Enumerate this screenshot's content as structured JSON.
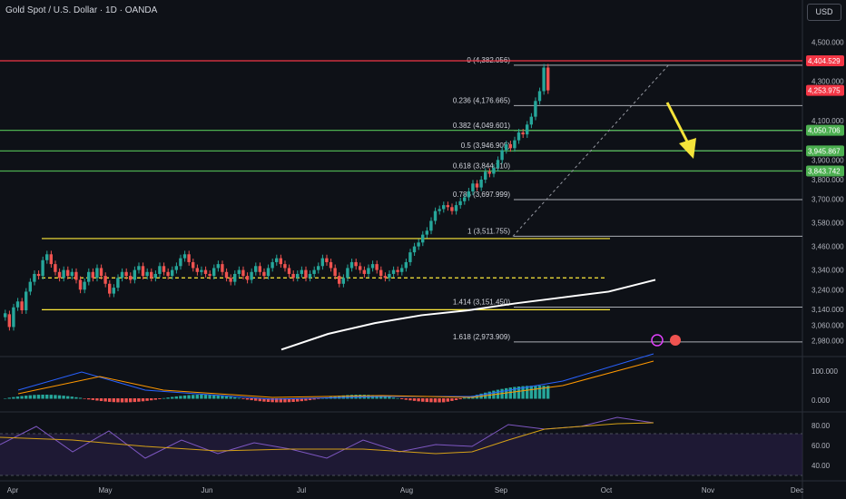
{
  "header": {
    "title": "Gold Spot / U.S. Dollar · 1D · OANDA",
    "currency": "USD"
  },
  "colors": {
    "bg": "#0e1117",
    "up": "#26a69a",
    "down": "#ef5350",
    "grid": "#1e222d",
    "text": "#b2b5be",
    "fib_line": "#d1d4dc",
    "green_line": "#4caf50",
    "red_line": "#f23645",
    "yellow_line": "#ffeb3b",
    "ma": "#ffffff",
    "arrow": "#f5e33a",
    "macd": "#2962ff",
    "signal": "#ff9800",
    "rsi": "#7e57c2",
    "rsi_ma": "#d4a017"
  },
  "chart_data": {
    "type": "candlestick",
    "x_ticks": [
      "Apr",
      "May",
      "Jun",
      "Jul",
      "Aug",
      "Sep",
      "Oct",
      "Nov",
      "Dec"
    ],
    "price_axis": {
      "ticks": [
        "4,500.000",
        "4,300.000",
        "4,100.000",
        "3,900.000",
        "3,800.000",
        "3,700.000",
        "3,580.000",
        "3,460.000",
        "3,340.000",
        "3,240.000",
        "3,140.000",
        "3,060.000",
        "2,980.000"
      ]
    },
    "price_labels": [
      {
        "text": "4,404.529",
        "value": 4404.529,
        "color": "#f23645"
      },
      {
        "text": "4,253.975",
        "value": 4253.975,
        "color": "#f23645"
      },
      {
        "text": "4,050.706",
        "value": 4050.706,
        "color": "#4caf50"
      },
      {
        "text": "3,945.867",
        "value": 3945.867,
        "color": "#4caf50"
      },
      {
        "text": "3,843.742",
        "value": 3843.742,
        "color": "#4caf50"
      }
    ],
    "fib_levels": [
      {
        "label": "0 (4,382.056)",
        "value": 4382.056
      },
      {
        "label": "0.236 (4,176.665)",
        "value": 4176.665
      },
      {
        "label": "0.382 (4,049.601)",
        "value": 4049.601
      },
      {
        "label": "0.5 (3,946.905)",
        "value": 3946.905
      },
      {
        "label": "0.618 (3,844.210)",
        "value": 3844.21
      },
      {
        "label": "0.786 (3,697.999)",
        "value": 3697.999
      },
      {
        "label": "1 (3,511.755)",
        "value": 3511.755
      },
      {
        "label": "1.414 (3,151.450)",
        "value": 3151.45
      },
      {
        "label": "1.618 (2,973.909)",
        "value": 2973.909
      }
    ],
    "horizontal_lines": [
      {
        "value": 4404.529,
        "color": "red"
      },
      {
        "value": 4050.706,
        "color": "green"
      },
      {
        "value": 3945.867,
        "color": "green"
      },
      {
        "value": 3843.742,
        "color": "green"
      },
      {
        "value": 3500,
        "color": "yellow"
      },
      {
        "value": 3138,
        "color": "yellow"
      },
      {
        "value": 3300,
        "color": "yellow",
        "style": "dashed"
      }
    ],
    "price_series": [
      [
        3100,
        3120
      ],
      [
        3115,
        3050
      ],
      [
        3050,
        3150
      ],
      [
        3150,
        3180
      ],
      [
        3180,
        3135
      ],
      [
        3135,
        3230
      ],
      [
        3230,
        3280
      ],
      [
        3280,
        3320
      ],
      [
        3320,
        3310
      ],
      [
        3310,
        3390
      ],
      [
        3390,
        3420
      ],
      [
        3420,
        3370
      ],
      [
        3370,
        3330
      ],
      [
        3330,
        3300
      ],
      [
        3300,
        3340
      ],
      [
        3340,
        3310
      ],
      [
        3310,
        3330
      ],
      [
        3330,
        3290
      ],
      [
        3290,
        3240
      ],
      [
        3240,
        3280
      ],
      [
        3280,
        3330
      ],
      [
        3330,
        3300
      ],
      [
        3300,
        3350
      ],
      [
        3350,
        3310
      ],
      [
        3310,
        3270
      ],
      [
        3270,
        3220
      ],
      [
        3220,
        3250
      ],
      [
        3250,
        3300
      ],
      [
        3300,
        3330
      ],
      [
        3330,
        3310
      ],
      [
        3310,
        3290
      ],
      [
        3290,
        3340
      ],
      [
        3340,
        3360
      ],
      [
        3360,
        3310
      ],
      [
        3310,
        3330
      ],
      [
        3330,
        3300
      ],
      [
        3300,
        3320
      ],
      [
        3320,
        3360
      ],
      [
        3360,
        3330
      ],
      [
        3330,
        3310
      ],
      [
        3310,
        3340
      ],
      [
        3340,
        3360
      ],
      [
        3360,
        3400
      ],
      [
        3400,
        3420
      ],
      [
        3420,
        3380
      ],
      [
        3380,
        3350
      ],
      [
        3350,
        3330
      ],
      [
        3330,
        3340
      ],
      [
        3340,
        3320
      ],
      [
        3320,
        3310
      ],
      [
        3310,
        3350
      ],
      [
        3350,
        3370
      ],
      [
        3370,
        3330
      ],
      [
        3330,
        3300
      ],
      [
        3300,
        3280
      ],
      [
        3280,
        3320
      ],
      [
        3320,
        3340
      ],
      [
        3340,
        3310
      ],
      [
        3310,
        3290
      ],
      [
        3290,
        3330
      ],
      [
        3330,
        3360
      ],
      [
        3360,
        3330
      ],
      [
        3330,
        3310
      ],
      [
        3310,
        3350
      ],
      [
        3350,
        3380
      ],
      [
        3380,
        3400
      ],
      [
        3400,
        3370
      ],
      [
        3370,
        3350
      ],
      [
        3350,
        3320
      ],
      [
        3320,
        3300
      ],
      [
        3300,
        3320
      ],
      [
        3320,
        3340
      ],
      [
        3340,
        3300
      ],
      [
        3300,
        3320
      ],
      [
        3320,
        3340
      ],
      [
        3340,
        3360
      ],
      [
        3360,
        3400
      ],
      [
        3400,
        3380
      ],
      [
        3380,
        3350
      ],
      [
        3350,
        3310
      ],
      [
        3310,
        3270
      ],
      [
        3270,
        3300
      ],
      [
        3300,
        3350
      ],
      [
        3350,
        3380
      ],
      [
        3380,
        3360
      ],
      [
        3360,
        3340
      ],
      [
        3340,
        3320
      ],
      [
        3320,
        3350
      ],
      [
        3350,
        3370
      ],
      [
        3370,
        3340
      ],
      [
        3340,
        3310
      ],
      [
        3310,
        3300
      ],
      [
        3300,
        3320
      ],
      [
        3320,
        3340
      ],
      [
        3340,
        3330
      ],
      [
        3330,
        3350
      ],
      [
        3350,
        3380
      ],
      [
        3380,
        3430
      ],
      [
        3430,
        3460
      ],
      [
        3460,
        3480
      ],
      [
        3480,
        3520
      ],
      [
        3520,
        3540
      ],
      [
        3540,
        3590
      ],
      [
        3590,
        3640
      ],
      [
        3640,
        3650
      ],
      [
        3650,
        3670
      ],
      [
        3670,
        3660
      ],
      [
        3660,
        3640
      ],
      [
        3640,
        3670
      ],
      [
        3670,
        3690
      ],
      [
        3690,
        3710
      ],
      [
        3710,
        3740
      ],
      [
        3740,
        3780
      ],
      [
        3780,
        3760
      ],
      [
        3760,
        3800
      ],
      [
        3800,
        3840
      ],
      [
        3840,
        3830
      ],
      [
        3830,
        3860
      ],
      [
        3860,
        3900
      ],
      [
        3900,
        3950
      ],
      [
        3950,
        3980
      ],
      [
        3980,
        3960
      ],
      [
        3960,
        4000
      ],
      [
        4000,
        4040
      ],
      [
        4040,
        4030
      ],
      [
        4030,
        4080
      ],
      [
        4080,
        4120
      ],
      [
        4120,
        4200
      ],
      [
        4200,
        4250
      ],
      [
        4250,
        4370
      ],
      [
        4370,
        4254
      ]
    ],
    "ma_line": {
      "x_start_index": 64,
      "values": [
        2935,
        3015,
        3070,
        3110,
        3135,
        3170,
        3200,
        3230,
        3290
      ]
    },
    "projected_path": [
      [
        130,
        4180
      ],
      [
        133,
        3850
      ]
    ],
    "macd": {
      "axis_ticks": [
        "100.000",
        "0.000"
      ]
    },
    "rsi": {
      "axis_ticks": [
        "80.00",
        "60.00",
        "40.00"
      ]
    }
  }
}
